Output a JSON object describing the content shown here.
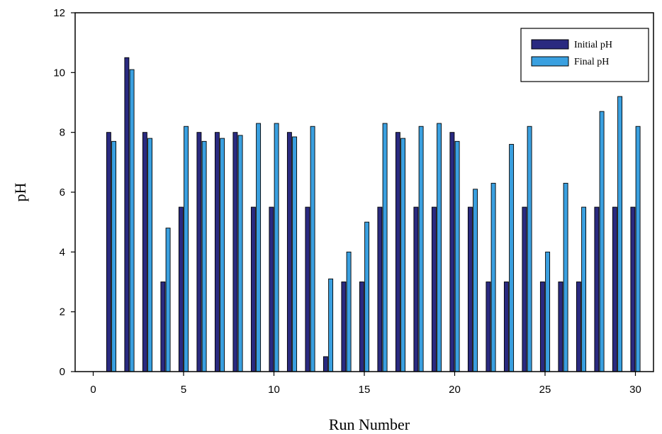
{
  "chart_data": {
    "type": "bar",
    "title": "",
    "xlabel": "Run Number",
    "ylabel": "pH",
    "xlim": [
      -1,
      31
    ],
    "ylim": [
      0,
      12
    ],
    "xticks": [
      0,
      5,
      10,
      15,
      20,
      25,
      30
    ],
    "yticks": [
      0,
      2,
      4,
      6,
      8,
      10,
      12
    ],
    "grid": false,
    "legend_position": "top-right",
    "x": [
      1,
      2,
      3,
      4,
      5,
      6,
      7,
      8,
      9,
      10,
      11,
      12,
      13,
      14,
      15,
      16,
      17,
      18,
      19,
      20,
      21,
      22,
      23,
      24,
      25,
      26,
      27,
      28,
      29,
      30
    ],
    "series": [
      {
        "name": "Initial pH",
        "color": "#2a2a80",
        "values": [
          8.0,
          10.5,
          8.0,
          3.0,
          5.5,
          8.0,
          8.0,
          8.0,
          5.5,
          5.5,
          8.0,
          5.5,
          0.5,
          3.0,
          3.0,
          5.5,
          8.0,
          5.5,
          5.5,
          8.0,
          5.5,
          3.0,
          3.0,
          5.5,
          3.0,
          3.0,
          3.0,
          5.5,
          5.5,
          5.5
        ]
      },
      {
        "name": "Final pH",
        "color": "#3aa0e0",
        "values": [
          7.7,
          10.1,
          7.8,
          4.8,
          8.2,
          7.7,
          7.8,
          7.9,
          8.3,
          8.3,
          7.85,
          8.2,
          3.1,
          4.0,
          5.0,
          8.3,
          7.8,
          8.2,
          8.3,
          7.7,
          6.1,
          6.3,
          7.6,
          8.2,
          4.0,
          6.3,
          5.5,
          8.7,
          9.2,
          8.2
        ]
      }
    ]
  }
}
